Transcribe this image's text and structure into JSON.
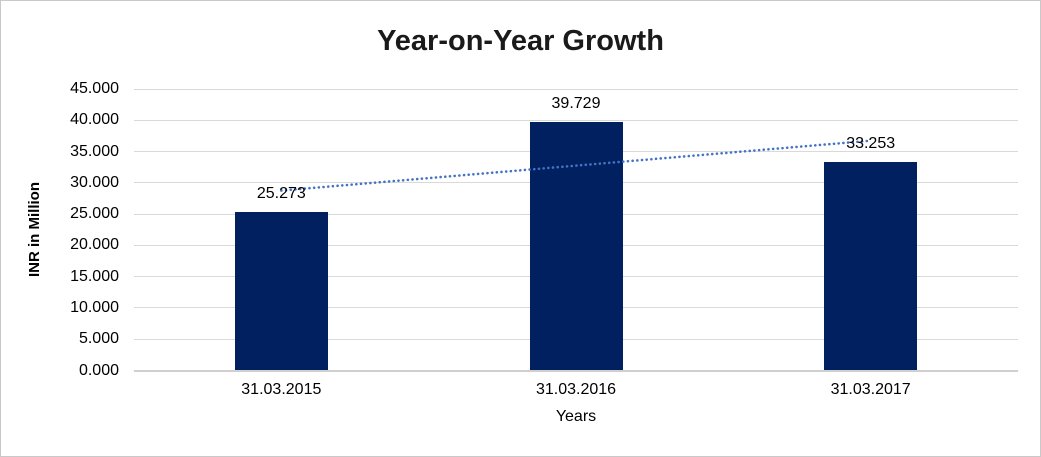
{
  "chart_data": {
    "type": "bar",
    "title": "Year-on-Year Growth",
    "xlabel": "Years",
    "ylabel": "INR in Million",
    "categories": [
      "31.03.2015",
      "31.03.2016",
      "31.03.2017"
    ],
    "values": [
      25.273,
      39.729,
      33.253
    ],
    "data_labels": [
      "25.273",
      "39.729",
      "33.253"
    ],
    "ylim": [
      0,
      45
    ],
    "ytick_step": 5,
    "ytick_labels": [
      "0.000",
      "5.000",
      "10.000",
      "15.000",
      "20.000",
      "25.000",
      "30.000",
      "35.000",
      "40.000",
      "45.000"
    ],
    "grid": true,
    "legend": false,
    "trendline": {
      "type": "linear",
      "style": "dotted",
      "start_value": 28.76,
      "end_value": 36.74
    },
    "colors": {
      "bar": "#002060",
      "trendline": "#4472c4",
      "gridline": "#d9d9d9",
      "axis_line": "#d0cece",
      "text": "#000000",
      "background": "#ffffff",
      "border": "#c9c9c9"
    }
  }
}
